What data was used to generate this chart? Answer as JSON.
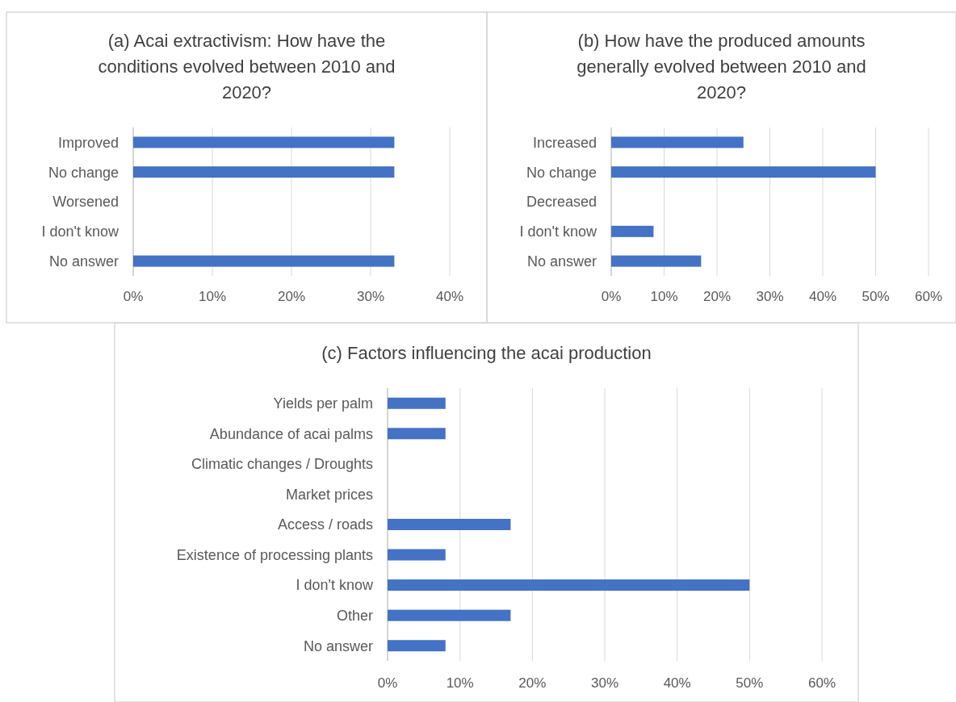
{
  "chart_data": [
    {
      "type": "bar",
      "orientation": "horizontal",
      "title": "(a) Acai extractivism: How have the conditions evolved between 2010 and 2020?",
      "categories": [
        "Improved",
        "No change",
        "Worsened",
        "I don't know",
        "No answer"
      ],
      "values": [
        33,
        33,
        0,
        0,
        33
      ],
      "color": "#4472c4",
      "xlim": [
        0,
        40
      ],
      "xticks": [
        {
          "value": 0,
          "label": "0%"
        },
        {
          "value": 10,
          "label": "10%"
        },
        {
          "value": 20,
          "label": "20%"
        },
        {
          "value": 30,
          "label": "30%"
        },
        {
          "value": 40,
          "label": "40%"
        }
      ],
      "grid": "x"
    },
    {
      "type": "bar",
      "orientation": "horizontal",
      "title": "(b) How have the produced amounts generally evolved between 2010 and 2020?",
      "categories": [
        "Increased",
        "No change",
        "Decreased",
        "I don't know",
        "No answer"
      ],
      "values": [
        25,
        50,
        0,
        8,
        17
      ],
      "color": "#4472c4",
      "xlim": [
        0,
        60
      ],
      "xticks": [
        {
          "value": 0,
          "label": "0%"
        },
        {
          "value": 10,
          "label": "10%"
        },
        {
          "value": 20,
          "label": "20%"
        },
        {
          "value": 30,
          "label": "30%"
        },
        {
          "value": 40,
          "label": "40%"
        },
        {
          "value": 50,
          "label": "50%"
        },
        {
          "value": 60,
          "label": "60%"
        }
      ],
      "grid": "x"
    },
    {
      "type": "bar",
      "orientation": "horizontal",
      "title": "(c) Factors influencing the acai production",
      "categories": [
        "Yields per palm",
        "Abundance of acai palms",
        "Climatic changes / Droughts",
        "Market prices",
        "Access / roads",
        "Existence of processing plants",
        "I don't know",
        "Other",
        "No answer"
      ],
      "values": [
        8,
        8,
        0,
        0,
        17,
        8,
        50,
        17,
        8
      ],
      "color": "#4472c4",
      "xlim": [
        0,
        60
      ],
      "xticks": [
        {
          "value": 0,
          "label": "0%"
        },
        {
          "value": 10,
          "label": "10%"
        },
        {
          "value": 20,
          "label": "20%"
        },
        {
          "value": 30,
          "label": "30%"
        },
        {
          "value": 40,
          "label": "40%"
        },
        {
          "value": 50,
          "label": "50%"
        },
        {
          "value": 60,
          "label": "60%"
        }
      ],
      "grid": "x"
    }
  ]
}
